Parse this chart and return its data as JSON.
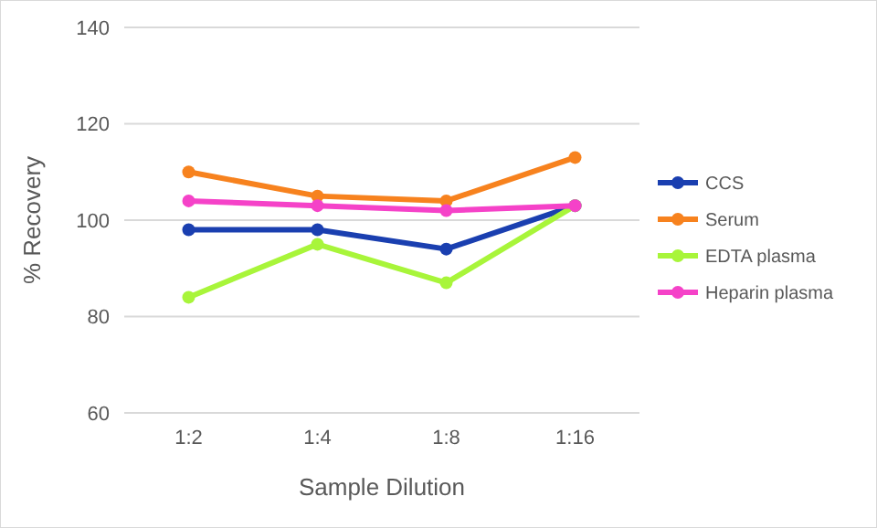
{
  "chart_data": {
    "type": "line",
    "xlabel": "Sample Dilution",
    "ylabel": "% Recovery",
    "categories": [
      "1:2",
      "1:4",
      "1:8",
      "1:16"
    ],
    "series": [
      {
        "name": "CCS",
        "color": "#1a3fb0",
        "values": [
          98,
          98,
          94,
          103
        ]
      },
      {
        "name": "Serum",
        "color": "#f7821e",
        "values": [
          110,
          105,
          104,
          113
        ]
      },
      {
        "name": "EDTA plasma",
        "color": "#a8f53a",
        "values": [
          84,
          95,
          87,
          103
        ]
      },
      {
        "name": "Heparin plasma",
        "color": "#f542c8",
        "values": [
          104,
          103,
          102,
          103
        ]
      }
    ],
    "ylim": [
      60,
      140
    ],
    "yticks": [
      60,
      80,
      100,
      120,
      140
    ],
    "grid": "y",
    "legend": "right",
    "marker": "circle",
    "line_style": "solid"
  }
}
